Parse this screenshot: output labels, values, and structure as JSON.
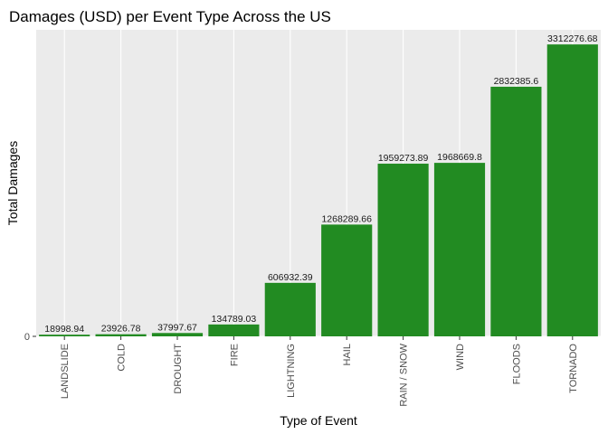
{
  "chart_data": {
    "type": "bar",
    "title": "Damages (USD) per Event Type Across the US",
    "xlabel": "Type of Event",
    "ylabel": "Total Damages",
    "categories": [
      "LANDSLIDE",
      "COLD",
      "DROUGHT",
      "FIRE",
      "LIGHTNING",
      "HAIL",
      "RAIN / SNOW",
      "WIND",
      "FLOODS",
      "TORNADO"
    ],
    "values": [
      18998.94,
      23926.78,
      37997.67,
      134789.03,
      606932.39,
      1268289.66,
      1959273.89,
      1968669.8,
      2832385.6,
      3312276.68
    ],
    "value_labels": [
      "18998.94",
      "23926.78",
      "37997.67",
      "134789.03",
      "606932.39",
      "1268289.66",
      "1959273.89",
      "1968669.8",
      "2832385.6",
      "3312276.68"
    ],
    "y_ticks": [
      0
    ],
    "y_tick_labels": [
      "0"
    ],
    "ylim": [
      0,
      3478000
    ],
    "grid": true,
    "legend": "none",
    "colors": {
      "bar": "#228B22",
      "panel": "#EBEBEB",
      "grid_major": "#FFFFFF",
      "grid_minor": "#F5F5F5",
      "tick_label": "#4D4D4D"
    }
  }
}
